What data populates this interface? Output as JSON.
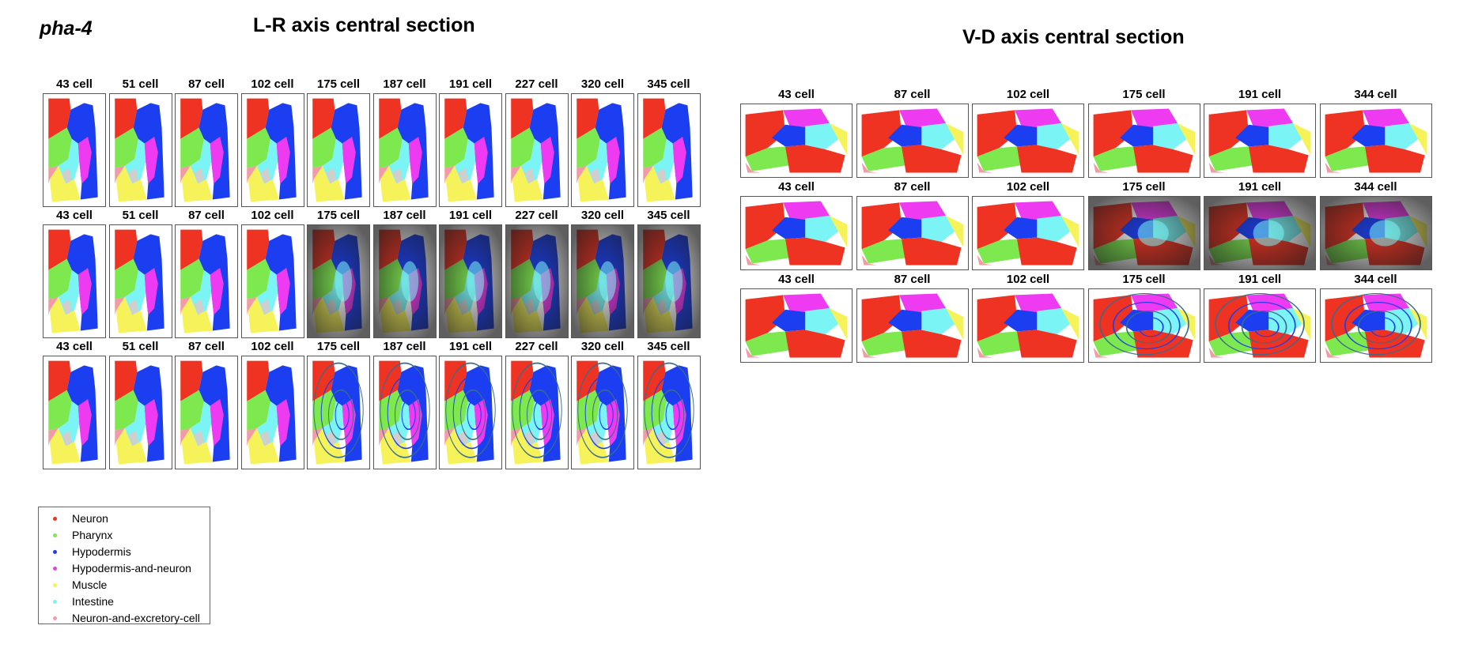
{
  "gene": "pha-4",
  "lr_section": {
    "title": "L-R axis central section",
    "rows": [
      [
        "43 cell",
        "51 cell",
        "87 cell",
        "102 cell",
        "175 cell",
        "187 cell",
        "191 cell",
        "227 cell",
        "320 cell",
        "345 cell"
      ],
      [
        "43 cell",
        "51 cell",
        "87 cell",
        "102 cell",
        "175 cell",
        "187 cell",
        "191 cell",
        "227 cell",
        "320 cell",
        "345 cell"
      ],
      [
        "43 cell",
        "51 cell",
        "87 cell",
        "102 cell",
        "175 cell",
        "187 cell",
        "191 cell",
        "227 cell",
        "320 cell",
        "345 cell"
      ]
    ],
    "row_styles": [
      "segmentation",
      "expression-overlay",
      "contour-overlay"
    ]
  },
  "vd_section": {
    "title": "V-D axis central section",
    "rows": [
      [
        "43 cell",
        "87 cell",
        "102 cell",
        "175 cell",
        "191 cell",
        "344 cell"
      ],
      [
        "43 cell",
        "87 cell",
        "102 cell",
        "175 cell",
        "191 cell",
        "344 cell"
      ],
      [
        "43 cell",
        "87 cell",
        "102 cell",
        "175 cell",
        "191 cell",
        "344 cell"
      ]
    ],
    "row_styles": [
      "segmentation",
      "expression-overlay",
      "contour-overlay"
    ]
  },
  "legend": [
    {
      "label": "Neuron",
      "color": "#ee3322"
    },
    {
      "label": "Pharynx",
      "color": "#7ee84f"
    },
    {
      "label": "Hypodermis",
      "color": "#1a3ef0"
    },
    {
      "label": "Hypodermis-and-neuron",
      "color": "#ee3af0"
    },
    {
      "label": "Muscle",
      "color": "#f6f25a"
    },
    {
      "label": "Intestine",
      "color": "#7af4f4"
    },
    {
      "label": "Neuron-and-excretory-cell",
      "color": "#f29aa6"
    }
  ],
  "extra_colors": {
    "unassigned": "#cfcfcf",
    "expression_shade": "#1a1a1a",
    "contour": "#3a6a8a"
  }
}
